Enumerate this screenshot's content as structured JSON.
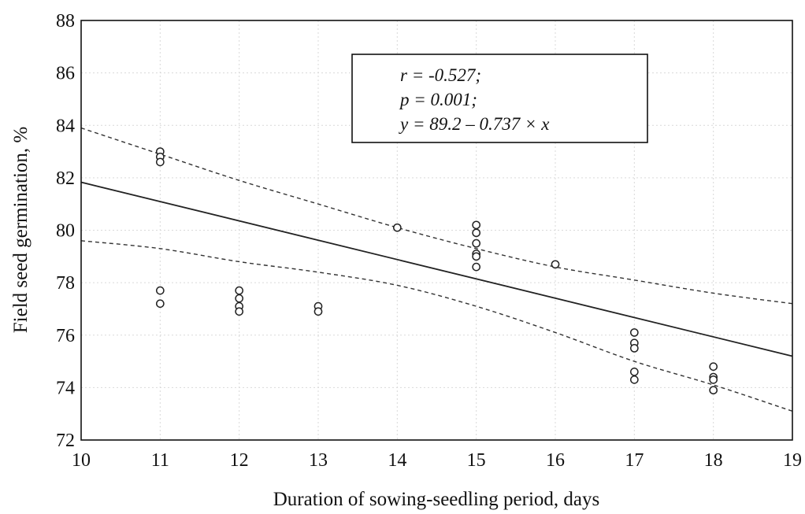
{
  "chart_data": {
    "type": "scatter",
    "xlabel": "Duration of sowing-seedling period, days",
    "ylabel": "Field seed germination, %",
    "xlim": [
      10,
      19
    ],
    "ylim": [
      72,
      88
    ],
    "xticks": [
      10,
      11,
      12,
      13,
      14,
      15,
      16,
      17,
      18,
      19
    ],
    "yticks": [
      72,
      74,
      76,
      78,
      80,
      82,
      84,
      86,
      88
    ],
    "grid": true,
    "points": [
      {
        "x": 11,
        "y": 83.0
      },
      {
        "x": 11,
        "y": 82.8
      },
      {
        "x": 11,
        "y": 82.6
      },
      {
        "x": 11,
        "y": 77.7
      },
      {
        "x": 11,
        "y": 77.2
      },
      {
        "x": 12,
        "y": 77.7
      },
      {
        "x": 12,
        "y": 77.4
      },
      {
        "x": 12,
        "y": 77.1
      },
      {
        "x": 12,
        "y": 76.9
      },
      {
        "x": 13,
        "y": 77.1
      },
      {
        "x": 13,
        "y": 76.9
      },
      {
        "x": 14,
        "y": 80.1
      },
      {
        "x": 15,
        "y": 80.2
      },
      {
        "x": 15,
        "y": 79.9
      },
      {
        "x": 15,
        "y": 79.5
      },
      {
        "x": 15,
        "y": 79.1
      },
      {
        "x": 15,
        "y": 79.0
      },
      {
        "x": 15,
        "y": 78.6
      },
      {
        "x": 16,
        "y": 78.7
      },
      {
        "x": 17,
        "y": 76.1
      },
      {
        "x": 17,
        "y": 75.7
      },
      {
        "x": 17,
        "y": 75.5
      },
      {
        "x": 17,
        "y": 74.6
      },
      {
        "x": 17,
        "y": 74.3
      },
      {
        "x": 18,
        "y": 74.8
      },
      {
        "x": 18,
        "y": 74.4
      },
      {
        "x": 18,
        "y": 74.3
      },
      {
        "x": 18,
        "y": 73.9
      }
    ],
    "regression": {
      "intercept": 89.2,
      "slope": -0.737
    },
    "confidence_upper": [
      {
        "x": 10,
        "y": 83.9
      },
      {
        "x": 11,
        "y": 82.9
      },
      {
        "x": 12,
        "y": 81.9
      },
      {
        "x": 13,
        "y": 81.0
      },
      {
        "x": 14,
        "y": 80.1
      },
      {
        "x": 15,
        "y": 79.3
      },
      {
        "x": 16,
        "y": 78.6
      },
      {
        "x": 17,
        "y": 78.1
      },
      {
        "x": 18,
        "y": 77.6
      },
      {
        "x": 19,
        "y": 77.2
      }
    ],
    "confidence_lower": [
      {
        "x": 10,
        "y": 79.6
      },
      {
        "x": 11,
        "y": 79.3
      },
      {
        "x": 12,
        "y": 78.8
      },
      {
        "x": 13,
        "y": 78.4
      },
      {
        "x": 14,
        "y": 77.9
      },
      {
        "x": 15,
        "y": 77.1
      },
      {
        "x": 16,
        "y": 76.1
      },
      {
        "x": 17,
        "y": 75.0
      },
      {
        "x": 18,
        "y": 74.1
      },
      {
        "x": 19,
        "y": 73.1
      }
    ],
    "annotations": [
      "r = -0.527;",
      "p = 0.001;",
      "y = 89.2 – 0.737 × x"
    ]
  }
}
